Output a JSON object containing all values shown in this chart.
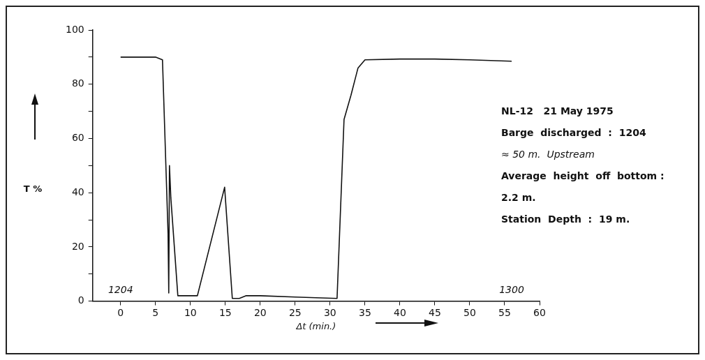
{
  "chart_data": {
    "type": "line",
    "xlabel": "Δt (min.)",
    "ylabel": "T %",
    "x": [
      0,
      5,
      6,
      6.8,
      6.9,
      7.0,
      7.2,
      8.2,
      11,
      14.9,
      16,
      17,
      18,
      20,
      25,
      31,
      32,
      33,
      34,
      35,
      40,
      45,
      50,
      56
    ],
    "series": [
      {
        "color": "#111111",
        "values": [
          90,
          90,
          89,
          25,
          3,
          50,
          38,
          2,
          2,
          42,
          1,
          1,
          2,
          2,
          1.5,
          1,
          67,
          76,
          86,
          89,
          89.3,
          89.3,
          89,
          88.5
        ]
      }
    ],
    "xlim": [
      -4,
      60
    ],
    "xticks": [
      0,
      5,
      10,
      15,
      20,
      25,
      30,
      35,
      40,
      45,
      50,
      55,
      60
    ],
    "ylim": [
      0,
      100
    ],
    "yticks": [
      0,
      {
        "value": 10,
        "label": null
      },
      20,
      {
        "value": 30,
        "label": null
      },
      40,
      {
        "value": 50,
        "label": null
      },
      60,
      {
        "value": 70,
        "label": null
      },
      80,
      {
        "value": 90,
        "label": null
      },
      100
    ],
    "grid": false,
    "legend": false,
    "marker": "none",
    "line_style": "solid",
    "annotations": [
      "1204",
      "1300",
      "NL-12   21 May 1975",
      "Barge  discharged  :  1204",
      "≈ 50 m.  Upstream",
      "Average  height  off  bottom :",
      "2.2 m.",
      "Station  Depth  :  19 m."
    ]
  }
}
